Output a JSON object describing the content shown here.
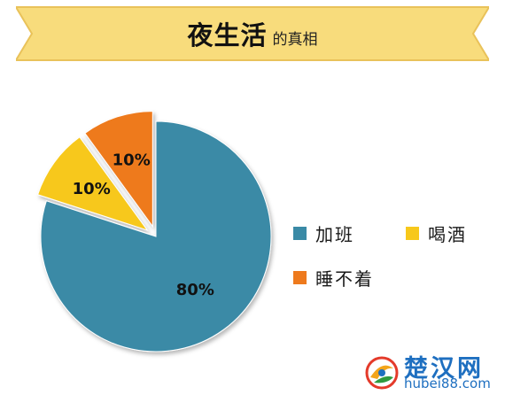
{
  "title": {
    "main": "夜生活",
    "sub": "的真相"
  },
  "colors": {
    "banner": "#f8dc7c",
    "banner_stroke": "#e9c25a",
    "slice_work": "#3a8aa6",
    "slice_drink": "#f7c81b",
    "slice_sleep": "#ee7a1d",
    "label_text": "#111111"
  },
  "chart_data": {
    "type": "pie",
    "slices": [
      {
        "label": "加班",
        "value": 80,
        "display": "80%"
      },
      {
        "label": "喝酒",
        "value": 10,
        "display": "10%"
      },
      {
        "label": "睡不着",
        "value": 10,
        "display": "10%"
      }
    ],
    "legend_position": "right"
  },
  "watermark": {
    "name": "楚汉网",
    "url": "hubei88.com"
  }
}
